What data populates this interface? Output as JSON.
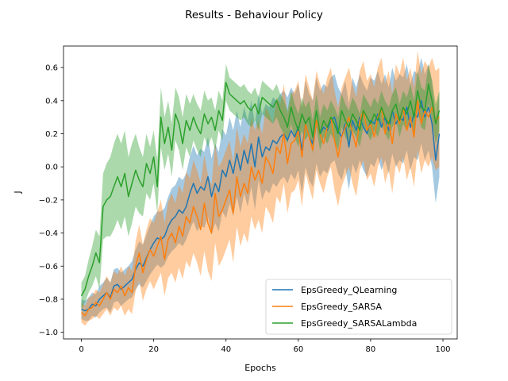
{
  "chart_data": {
    "type": "line",
    "title": "Results - Behaviour Policy",
    "xlabel": "Epochs",
    "ylabel": "J",
    "xlim": [
      -4.95,
      103.95
    ],
    "ylim": [
      -1.04,
      0.73
    ],
    "xticks": [
      0,
      20,
      40,
      60,
      80,
      100
    ],
    "yticks": [
      -1.0,
      -0.8,
      -0.6,
      -0.4,
      -0.2,
      0.0,
      0.2,
      0.4,
      0.6
    ],
    "ytick_labels": [
      "−1.0",
      "−0.8",
      "−0.6",
      "−0.4",
      "−0.2",
      "0.0",
      "0.2",
      "0.4",
      "0.6"
    ],
    "legend_position": "lower-right",
    "grid": false,
    "x": [
      0,
      1,
      2,
      3,
      4,
      5,
      6,
      7,
      8,
      9,
      10,
      11,
      12,
      13,
      14,
      15,
      16,
      17,
      18,
      19,
      20,
      21,
      22,
      23,
      24,
      25,
      26,
      27,
      28,
      29,
      30,
      31,
      32,
      33,
      34,
      35,
      36,
      37,
      38,
      39,
      40,
      41,
      42,
      43,
      44,
      45,
      46,
      47,
      48,
      49,
      50,
      51,
      52,
      53,
      54,
      55,
      56,
      57,
      58,
      59,
      60,
      61,
      62,
      63,
      64,
      65,
      66,
      67,
      68,
      69,
      70,
      71,
      72,
      73,
      74,
      75,
      76,
      77,
      78,
      79,
      80,
      81,
      82,
      83,
      84,
      85,
      86,
      87,
      88,
      89,
      90,
      91,
      92,
      93,
      94,
      95,
      96,
      97,
      98,
      99
    ],
    "series": [
      {
        "name": "EpsGreedy_QLearning",
        "color": "#1f77b4",
        "values": [
          -0.86,
          -0.87,
          -0.86,
          -0.83,
          -0.84,
          -0.8,
          -0.78,
          -0.76,
          -0.79,
          -0.72,
          -0.71,
          -0.74,
          -0.72,
          -0.7,
          -0.68,
          -0.62,
          -0.58,
          -0.6,
          -0.55,
          -0.5,
          -0.46,
          -0.43,
          -0.44,
          -0.42,
          -0.36,
          -0.32,
          -0.3,
          -0.26,
          -0.28,
          -0.24,
          -0.16,
          -0.1,
          -0.16,
          -0.12,
          -0.14,
          -0.06,
          -0.18,
          -0.1,
          -0.15,
          -0.02,
          -0.06,
          0.04,
          -0.04,
          0.08,
          -0.02,
          0.1,
          0.02,
          0.14,
          0.0,
          0.18,
          0.06,
          0.12,
          0.1,
          0.16,
          0.14,
          0.18,
          0.2,
          0.16,
          0.22,
          0.18,
          0.24,
          0.1,
          0.26,
          0.18,
          0.14,
          0.28,
          0.2,
          0.24,
          0.22,
          0.28,
          0.3,
          0.22,
          0.18,
          0.26,
          0.12,
          0.28,
          0.22,
          0.3,
          0.24,
          0.2,
          0.28,
          0.26,
          0.32,
          0.24,
          0.3,
          0.22,
          0.34,
          0.26,
          0.3,
          0.28,
          0.36,
          0.24,
          0.32,
          0.3,
          0.4,
          0.3,
          0.36,
          0.26,
          0.04,
          0.2
        ],
        "lower": [
          -0.92,
          -0.93,
          -0.93,
          -0.9,
          -0.91,
          -0.88,
          -0.86,
          -0.85,
          -0.88,
          -0.82,
          -0.81,
          -0.84,
          -0.82,
          -0.8,
          -0.79,
          -0.74,
          -0.71,
          -0.73,
          -0.69,
          -0.65,
          -0.62,
          -0.59,
          -0.61,
          -0.59,
          -0.54,
          -0.51,
          -0.49,
          -0.46,
          -0.48,
          -0.44,
          -0.38,
          -0.33,
          -0.39,
          -0.35,
          -0.37,
          -0.3,
          -0.41,
          -0.34,
          -0.39,
          -0.27,
          -0.31,
          -0.22,
          -0.3,
          -0.18,
          -0.28,
          -0.16,
          -0.24,
          -0.12,
          -0.26,
          -0.08,
          -0.2,
          -0.14,
          -0.16,
          -0.1,
          -0.12,
          -0.08,
          -0.06,
          -0.1,
          -0.04,
          -0.08,
          -0.02,
          -0.16,
          0.0,
          -0.08,
          -0.12,
          0.02,
          -0.06,
          -0.02,
          -0.04,
          0.02,
          0.04,
          -0.04,
          -0.08,
          0.0,
          -0.14,
          0.02,
          -0.04,
          0.04,
          -0.02,
          -0.06,
          0.02,
          0.0,
          0.06,
          -0.02,
          0.04,
          -0.04,
          0.08,
          0.0,
          0.04,
          0.02,
          0.1,
          -0.02,
          0.06,
          0.04,
          0.14,
          0.04,
          0.1,
          0.0,
          -0.22,
          -0.06
        ],
        "upper": [
          -0.8,
          -0.81,
          -0.79,
          -0.76,
          -0.77,
          -0.72,
          -0.7,
          -0.67,
          -0.7,
          -0.62,
          -0.61,
          -0.64,
          -0.62,
          -0.6,
          -0.57,
          -0.5,
          -0.45,
          -0.47,
          -0.41,
          -0.35,
          -0.3,
          -0.27,
          -0.27,
          -0.25,
          -0.18,
          -0.13,
          -0.11,
          -0.06,
          -0.08,
          -0.04,
          0.06,
          0.13,
          0.07,
          0.11,
          0.09,
          0.18,
          0.05,
          0.14,
          0.09,
          0.23,
          0.19,
          0.3,
          0.22,
          0.34,
          0.24,
          0.36,
          0.28,
          0.4,
          0.26,
          0.44,
          0.32,
          0.38,
          0.36,
          0.42,
          0.4,
          0.44,
          0.46,
          0.42,
          0.48,
          0.44,
          0.5,
          0.36,
          0.52,
          0.44,
          0.4,
          0.54,
          0.46,
          0.5,
          0.48,
          0.54,
          0.56,
          0.48,
          0.44,
          0.52,
          0.38,
          0.54,
          0.48,
          0.56,
          0.5,
          0.46,
          0.54,
          0.52,
          0.58,
          0.5,
          0.56,
          0.48,
          0.6,
          0.52,
          0.56,
          0.54,
          0.62,
          0.5,
          0.58,
          0.56,
          0.66,
          0.56,
          0.62,
          0.52,
          0.3,
          0.46
        ]
      },
      {
        "name": "EpsGreedy_SARSA",
        "color": "#ff7f0e",
        "values": [
          -0.88,
          -0.9,
          -0.86,
          -0.85,
          -0.82,
          -0.84,
          -0.8,
          -0.76,
          -0.8,
          -0.74,
          -0.76,
          -0.72,
          -0.78,
          -0.73,
          -0.76,
          -0.6,
          -0.52,
          -0.64,
          -0.56,
          -0.5,
          -0.54,
          -0.48,
          -0.42,
          -0.56,
          -0.44,
          -0.4,
          -0.46,
          -0.36,
          -0.42,
          -0.3,
          -0.34,
          -0.24,
          -0.3,
          -0.38,
          -0.22,
          -0.34,
          -0.4,
          -0.16,
          -0.3,
          -0.26,
          -0.2,
          -0.14,
          -0.28,
          -0.06,
          -0.18,
          -0.1,
          -0.16,
          0.0,
          -0.08,
          -0.02,
          -0.1,
          0.06,
          0.02,
          -0.04,
          0.12,
          0.08,
          0.2,
          0.02,
          0.14,
          0.16,
          0.22,
          0.06,
          0.26,
          0.18,
          0.1,
          0.28,
          0.2,
          0.14,
          0.24,
          0.3,
          0.16,
          0.06,
          0.18,
          0.24,
          0.3,
          0.2,
          0.12,
          0.28,
          0.34,
          0.22,
          0.26,
          0.18,
          0.3,
          0.36,
          0.2,
          0.28,
          0.14,
          0.32,
          0.26,
          0.36,
          0.22,
          0.3,
          0.18,
          0.4,
          0.26,
          0.34,
          0.3,
          0.36,
          0.28,
          0.3
        ],
        "lower": [
          -0.94,
          -0.96,
          -0.93,
          -0.92,
          -0.9,
          -0.92,
          -0.89,
          -0.86,
          -0.9,
          -0.85,
          -0.87,
          -0.84,
          -0.9,
          -0.86,
          -0.89,
          -0.75,
          -0.69,
          -0.81,
          -0.74,
          -0.69,
          -0.74,
          -0.69,
          -0.64,
          -0.78,
          -0.67,
          -0.64,
          -0.7,
          -0.61,
          -0.68,
          -0.57,
          -0.61,
          -0.52,
          -0.58,
          -0.66,
          -0.51,
          -0.63,
          -0.69,
          -0.46,
          -0.6,
          -0.56,
          -0.5,
          -0.44,
          -0.58,
          -0.36,
          -0.48,
          -0.4,
          -0.46,
          -0.3,
          -0.38,
          -0.32,
          -0.4,
          -0.24,
          -0.28,
          -0.34,
          -0.18,
          -0.22,
          -0.1,
          -0.28,
          -0.16,
          -0.14,
          -0.08,
          -0.24,
          -0.04,
          -0.12,
          -0.2,
          -0.02,
          -0.1,
          -0.16,
          -0.06,
          0.0,
          -0.14,
          -0.24,
          -0.12,
          -0.06,
          0.0,
          -0.1,
          -0.18,
          -0.02,
          0.04,
          -0.08,
          -0.04,
          -0.12,
          0.0,
          0.06,
          -0.1,
          -0.02,
          -0.16,
          0.02,
          -0.04,
          0.06,
          -0.08,
          0.0,
          -0.12,
          0.1,
          -0.04,
          0.04,
          0.0,
          0.06,
          -0.02,
          0.0
        ],
        "upper": [
          -0.82,
          -0.84,
          -0.79,
          -0.78,
          -0.74,
          -0.76,
          -0.71,
          -0.66,
          -0.7,
          -0.63,
          -0.65,
          -0.6,
          -0.66,
          -0.6,
          -0.63,
          -0.45,
          -0.35,
          -0.47,
          -0.38,
          -0.31,
          -0.34,
          -0.27,
          -0.2,
          -0.34,
          -0.21,
          -0.16,
          -0.22,
          -0.11,
          -0.16,
          -0.03,
          -0.07,
          0.04,
          -0.02,
          -0.1,
          0.07,
          -0.05,
          -0.11,
          0.14,
          0.0,
          0.04,
          0.1,
          0.16,
          0.02,
          0.24,
          0.12,
          0.2,
          0.14,
          0.3,
          0.22,
          0.28,
          0.2,
          0.36,
          0.32,
          0.26,
          0.42,
          0.38,
          0.5,
          0.32,
          0.44,
          0.46,
          0.52,
          0.36,
          0.56,
          0.48,
          0.4,
          0.58,
          0.5,
          0.44,
          0.54,
          0.6,
          0.46,
          0.36,
          0.48,
          0.54,
          0.6,
          0.5,
          0.42,
          0.58,
          0.64,
          0.52,
          0.56,
          0.48,
          0.6,
          0.66,
          0.5,
          0.58,
          0.44,
          0.62,
          0.56,
          0.66,
          0.52,
          0.6,
          0.48,
          0.7,
          0.56,
          0.64,
          0.6,
          0.66,
          0.58,
          0.6
        ]
      },
      {
        "name": "EpsGreedy_SARSALambda",
        "color": "#2ca02c",
        "values": [
          -0.78,
          -0.74,
          -0.66,
          -0.6,
          -0.52,
          -0.58,
          -0.24,
          -0.2,
          -0.18,
          -0.12,
          -0.06,
          -0.12,
          -0.04,
          -0.18,
          -0.1,
          -0.02,
          -0.08,
          -0.12,
          0.02,
          -0.04,
          0.06,
          -0.12,
          0.3,
          0.14,
          0.24,
          0.1,
          0.32,
          0.26,
          0.14,
          0.28,
          0.22,
          0.3,
          0.24,
          0.2,
          0.32,
          0.26,
          0.3,
          0.22,
          0.34,
          0.28,
          0.51,
          0.44,
          0.42,
          0.4,
          0.38,
          0.4,
          0.36,
          0.34,
          0.38,
          0.32,
          0.42,
          0.4,
          0.38,
          0.36,
          0.4,
          0.34,
          0.3,
          0.24,
          0.36,
          0.28,
          0.22,
          0.32,
          0.26,
          0.3,
          0.18,
          0.34,
          0.2,
          0.28,
          0.24,
          0.3,
          0.26,
          0.2,
          0.34,
          0.28,
          0.24,
          0.32,
          0.28,
          0.22,
          0.34,
          0.3,
          0.26,
          0.32,
          0.28,
          0.36,
          0.3,
          0.26,
          0.34,
          0.38,
          0.28,
          0.36,
          0.32,
          0.4,
          0.3,
          0.46,
          0.36,
          0.34,
          0.5,
          0.4,
          0.26,
          0.34
        ],
        "lower": [
          -0.86,
          -0.82,
          -0.76,
          -0.72,
          -0.66,
          -0.74,
          -0.44,
          -0.42,
          -0.42,
          -0.38,
          -0.32,
          -0.38,
          -0.3,
          -0.42,
          -0.34,
          -0.24,
          -0.28,
          -0.3,
          -0.16,
          -0.2,
          -0.1,
          -0.28,
          0.12,
          -0.02,
          0.08,
          -0.06,
          0.16,
          0.1,
          -0.02,
          0.12,
          0.06,
          0.16,
          0.1,
          0.06,
          0.18,
          0.12,
          0.18,
          0.1,
          0.22,
          0.16,
          0.4,
          0.34,
          0.32,
          0.3,
          0.28,
          0.3,
          0.26,
          0.24,
          0.28,
          0.22,
          0.32,
          0.3,
          0.28,
          0.26,
          0.3,
          0.24,
          0.2,
          0.14,
          0.26,
          0.18,
          0.12,
          0.22,
          0.16,
          0.2,
          0.08,
          0.24,
          0.1,
          0.18,
          0.14,
          0.2,
          0.16,
          0.1,
          0.24,
          0.18,
          0.14,
          0.22,
          0.18,
          0.12,
          0.24,
          0.2,
          0.16,
          0.22,
          0.18,
          0.26,
          0.2,
          0.16,
          0.24,
          0.28,
          0.18,
          0.26,
          0.22,
          0.3,
          0.2,
          0.34,
          0.24,
          0.22,
          0.38,
          0.28,
          0.14,
          0.22
        ],
        "upper": [
          -0.7,
          -0.66,
          -0.56,
          -0.48,
          -0.38,
          -0.42,
          -0.04,
          0.02,
          0.06,
          0.14,
          0.2,
          0.14,
          0.22,
          0.06,
          0.14,
          0.2,
          0.12,
          0.06,
          0.2,
          0.12,
          0.22,
          0.04,
          0.48,
          0.3,
          0.4,
          0.26,
          0.48,
          0.42,
          0.3,
          0.44,
          0.38,
          0.44,
          0.38,
          0.34,
          0.46,
          0.4,
          0.42,
          0.34,
          0.46,
          0.4,
          0.62,
          0.54,
          0.52,
          0.5,
          0.48,
          0.5,
          0.46,
          0.44,
          0.48,
          0.42,
          0.52,
          0.5,
          0.48,
          0.46,
          0.5,
          0.44,
          0.4,
          0.34,
          0.46,
          0.38,
          0.32,
          0.42,
          0.36,
          0.4,
          0.28,
          0.44,
          0.3,
          0.38,
          0.34,
          0.4,
          0.36,
          0.3,
          0.44,
          0.38,
          0.34,
          0.42,
          0.38,
          0.32,
          0.44,
          0.4,
          0.36,
          0.42,
          0.38,
          0.46,
          0.4,
          0.36,
          0.44,
          0.48,
          0.38,
          0.46,
          0.42,
          0.5,
          0.4,
          0.58,
          0.48,
          0.46,
          0.62,
          0.52,
          0.38,
          0.46
        ]
      }
    ]
  }
}
